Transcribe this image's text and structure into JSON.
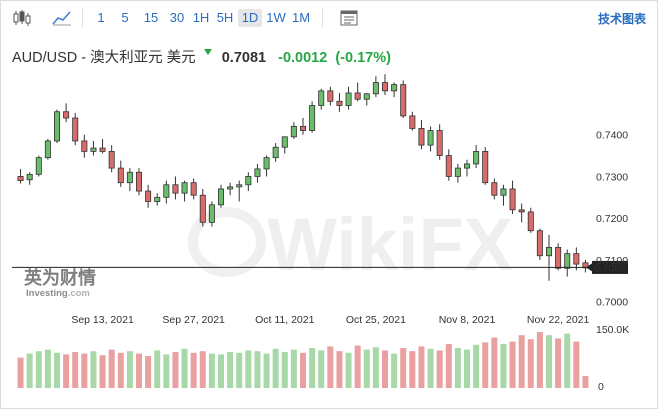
{
  "toolbar": {
    "timeframes": [
      "1",
      "5",
      "15",
      "30",
      "1H",
      "5H",
      "1D",
      "1W",
      "1M"
    ],
    "active_timeframe": "1D",
    "tech_chart_label": "技术图表",
    "icons": [
      "candlestick-icon",
      "area-chart-icon",
      "indicator-list-icon"
    ]
  },
  "quote": {
    "name": "AUD/USD - 澳大利亚元 美元",
    "last": "0.7081",
    "change": "-0.0012",
    "change_pct": "(-0.17%)",
    "up_color": "#27a744"
  },
  "watermark": {
    "brand_cn": "英为财情",
    "brand_en": "Investing",
    "brand_dotcom": ".com",
    "wikifx": "WikiFX"
  },
  "chart_data": {
    "type": "candlestick",
    "x_labels": [
      "Sep 13, 2021",
      "Sep 27, 2021",
      "Oct 11, 2021",
      "Oct 25, 2021",
      "Nov 8, 2021",
      "Nov 22, 2021"
    ],
    "y_ticks": [
      "0.7400",
      "0.7300",
      "0.7200",
      "0.7100",
      "0.7000"
    ],
    "ylim": [
      0.698,
      0.7555
    ],
    "current_price_label": "0.7082",
    "current_price": 0.7082,
    "volume_ticks": [
      "150.0K",
      "0"
    ],
    "colors": {
      "up": "#6bbd6d",
      "down": "#d96b6b",
      "up_vol": "#a8d8a8",
      "down_vol": "#e8a0a0"
    },
    "candles": [
      [
        0.73,
        0.7318,
        0.7283,
        0.729
      ],
      [
        0.7292,
        0.731,
        0.728,
        0.7305
      ],
      [
        0.7305,
        0.735,
        0.73,
        0.7345
      ],
      [
        0.7345,
        0.739,
        0.734,
        0.7385
      ],
      [
        0.7385,
        0.746,
        0.738,
        0.7455
      ],
      [
        0.7455,
        0.7475,
        0.743,
        0.744
      ],
      [
        0.744,
        0.7452,
        0.7375,
        0.7385
      ],
      [
        0.7385,
        0.74,
        0.7345,
        0.736
      ],
      [
        0.736,
        0.7385,
        0.735,
        0.7368
      ],
      [
        0.7368,
        0.739,
        0.7355,
        0.736
      ],
      [
        0.736,
        0.7375,
        0.731,
        0.732
      ],
      [
        0.732,
        0.7338,
        0.7275,
        0.7285
      ],
      [
        0.7285,
        0.732,
        0.7265,
        0.731
      ],
      [
        0.731,
        0.732,
        0.7255,
        0.7265
      ],
      [
        0.7265,
        0.728,
        0.7225,
        0.724
      ],
      [
        0.724,
        0.726,
        0.723,
        0.725
      ],
      [
        0.725,
        0.729,
        0.7235,
        0.728
      ],
      [
        0.728,
        0.73,
        0.7245,
        0.726
      ],
      [
        0.726,
        0.729,
        0.724,
        0.7285
      ],
      [
        0.7285,
        0.7295,
        0.7245,
        0.7255
      ],
      [
        0.7255,
        0.727,
        0.718,
        0.719
      ],
      [
        0.719,
        0.724,
        0.718,
        0.7232
      ],
      [
        0.7232,
        0.728,
        0.7225,
        0.727
      ],
      [
        0.727,
        0.7285,
        0.7255,
        0.7275
      ],
      [
        0.7275,
        0.729,
        0.724,
        0.728
      ],
      [
        0.728,
        0.731,
        0.7265,
        0.73
      ],
      [
        0.73,
        0.733,
        0.7285,
        0.7318
      ],
      [
        0.7318,
        0.735,
        0.73,
        0.7345
      ],
      [
        0.7345,
        0.738,
        0.7335,
        0.737
      ],
      [
        0.737,
        0.7395,
        0.7355,
        0.7395
      ],
      [
        0.7395,
        0.743,
        0.739,
        0.742
      ],
      [
        0.742,
        0.744,
        0.74,
        0.741
      ],
      [
        0.741,
        0.748,
        0.7405,
        0.747
      ],
      [
        0.747,
        0.751,
        0.746,
        0.7505
      ],
      [
        0.7505,
        0.7515,
        0.747,
        0.748
      ],
      [
        0.748,
        0.75,
        0.7455,
        0.747
      ],
      [
        0.747,
        0.7515,
        0.746,
        0.75
      ],
      [
        0.75,
        0.7525,
        0.748,
        0.7485
      ],
      [
        0.7485,
        0.75,
        0.747,
        0.7498
      ],
      [
        0.7498,
        0.754,
        0.749,
        0.7525
      ],
      [
        0.7525,
        0.7545,
        0.7495,
        0.7505
      ],
      [
        0.7505,
        0.7525,
        0.749,
        0.752
      ],
      [
        0.752,
        0.753,
        0.744,
        0.7445
      ],
      [
        0.7445,
        0.7455,
        0.741,
        0.7415
      ],
      [
        0.7415,
        0.7435,
        0.7365,
        0.7375
      ],
      [
        0.7375,
        0.742,
        0.736,
        0.741
      ],
      [
        0.741,
        0.7425,
        0.734,
        0.735
      ],
      [
        0.735,
        0.7365,
        0.729,
        0.73
      ],
      [
        0.73,
        0.733,
        0.7285,
        0.732
      ],
      [
        0.732,
        0.734,
        0.73,
        0.733
      ],
      [
        0.733,
        0.7375,
        0.732,
        0.736
      ],
      [
        0.736,
        0.737,
        0.728,
        0.7285
      ],
      [
        0.7285,
        0.7295,
        0.7245,
        0.7255
      ],
      [
        0.7255,
        0.728,
        0.723,
        0.727
      ],
      [
        0.727,
        0.729,
        0.721,
        0.722
      ],
      [
        0.722,
        0.7235,
        0.719,
        0.7215
      ],
      [
        0.7215,
        0.7225,
        0.7165,
        0.717
      ],
      [
        0.717,
        0.7175,
        0.71,
        0.711
      ],
      [
        0.711,
        0.716,
        0.705,
        0.713
      ],
      [
        0.713,
        0.714,
        0.7075,
        0.708
      ],
      [
        0.708,
        0.7125,
        0.706,
        0.7115
      ],
      [
        0.7115,
        0.713,
        0.7075,
        0.709
      ],
      [
        0.7093,
        0.71,
        0.707,
        0.7081
      ]
    ],
    "volumes": [
      0.38,
      0.43,
      0.46,
      0.48,
      0.44,
      0.42,
      0.45,
      0.43,
      0.46,
      0.41,
      0.48,
      0.44,
      0.46,
      0.43,
      0.4,
      0.47,
      0.42,
      0.45,
      0.49,
      0.44,
      0.46,
      0.43,
      0.42,
      0.45,
      0.44,
      0.47,
      0.46,
      0.43,
      0.49,
      0.45,
      0.48,
      0.44,
      0.5,
      0.47,
      0.52,
      0.46,
      0.44,
      0.53,
      0.48,
      0.51,
      0.47,
      0.43,
      0.5,
      0.46,
      0.52,
      0.49,
      0.47,
      0.55,
      0.5,
      0.48,
      0.54,
      0.57,
      0.63,
      0.55,
      0.58,
      0.66,
      0.61,
      0.7,
      0.66,
      0.62,
      0.68,
      0.58,
      0.15
    ]
  }
}
